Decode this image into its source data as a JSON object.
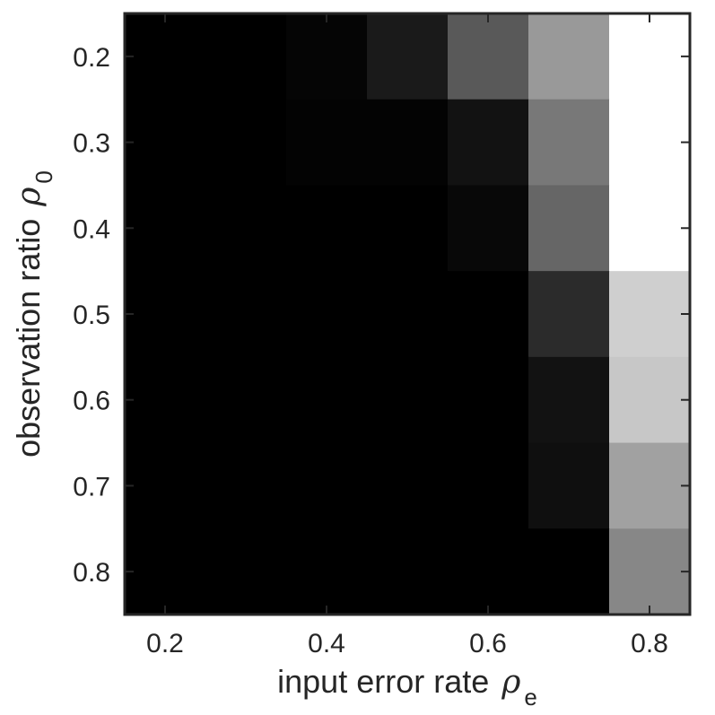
{
  "chart_data": {
    "type": "heatmap",
    "title": "",
    "colormap": "gray",
    "grid": false,
    "x": {
      "label": "input error rate",
      "symbol": "ρ",
      "subscript": "e",
      "values": [
        0.2,
        0.3,
        0.4,
        0.5,
        0.6,
        0.7,
        0.8
      ],
      "range": [
        0.15,
        0.85
      ],
      "ticks": [
        0.2,
        0.4,
        0.6,
        0.8
      ],
      "tick_labels": [
        "0.2",
        "0.4",
        "0.6",
        "0.8"
      ]
    },
    "y": {
      "label": "observation ratio",
      "symbol": "ρ",
      "subscript": "0",
      "values": [
        0.2,
        0.3,
        0.4,
        0.5,
        0.6,
        0.7,
        0.8
      ],
      "range": [
        0.15,
        0.85
      ],
      "reversed": true,
      "ticks": [
        0.2,
        0.3,
        0.4,
        0.5,
        0.6,
        0.7,
        0.8
      ],
      "tick_labels": [
        "0.2",
        "0.3",
        "0.4",
        "0.5",
        "0.6",
        "0.7",
        "0.8"
      ]
    },
    "values": [
      [
        0.0,
        0.0,
        0.02,
        0.1,
        0.35,
        0.6,
        1.0
      ],
      [
        0.0,
        0.0,
        0.01,
        0.01,
        0.07,
        0.47,
        1.0
      ],
      [
        0.0,
        0.0,
        0.0,
        0.0,
        0.03,
        0.4,
        1.0
      ],
      [
        0.0,
        0.0,
        0.0,
        0.0,
        0.0,
        0.17,
        0.81
      ],
      [
        0.0,
        0.0,
        0.0,
        0.0,
        0.0,
        0.07,
        0.78
      ],
      [
        0.0,
        0.0,
        0.0,
        0.0,
        0.0,
        0.06,
        0.63
      ],
      [
        0.0,
        0.0,
        0.0,
        0.0,
        0.0,
        0.0,
        0.53
      ]
    ]
  }
}
